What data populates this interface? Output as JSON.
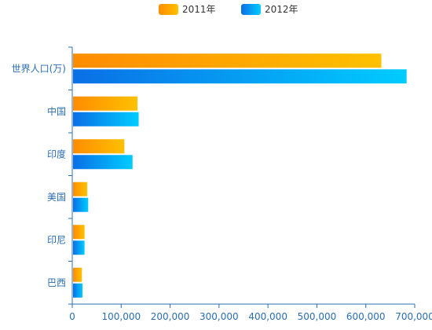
{
  "chart_data": {
    "type": "bar",
    "orientation": "horizontal",
    "categories": [
      "世界人口(万)",
      "中国",
      "印度",
      "美国",
      "印尼",
      "巴西"
    ],
    "series": [
      {
        "name": "2011年",
        "values": [
          630230,
          131744,
          104970,
          29034,
          23489,
          18203
        ],
        "gradient": [
          "#ff8c00",
          "#ffc100"
        ]
      },
      {
        "name": "2012年",
        "values": [
          681807,
          134141,
          121594,
          31000,
          23489,
          19325
        ],
        "gradient": [
          "#0a6fe6",
          "#00ccff"
        ]
      }
    ],
    "x_ticks": [
      "0",
      "100,000",
      "200,000",
      "300,000",
      "400,000",
      "500,000",
      "600,000",
      "700,000"
    ],
    "xlim": [
      0,
      700000
    ],
    "legend_position": "top-center",
    "grid": false,
    "axis_color": "#2a6db3"
  }
}
